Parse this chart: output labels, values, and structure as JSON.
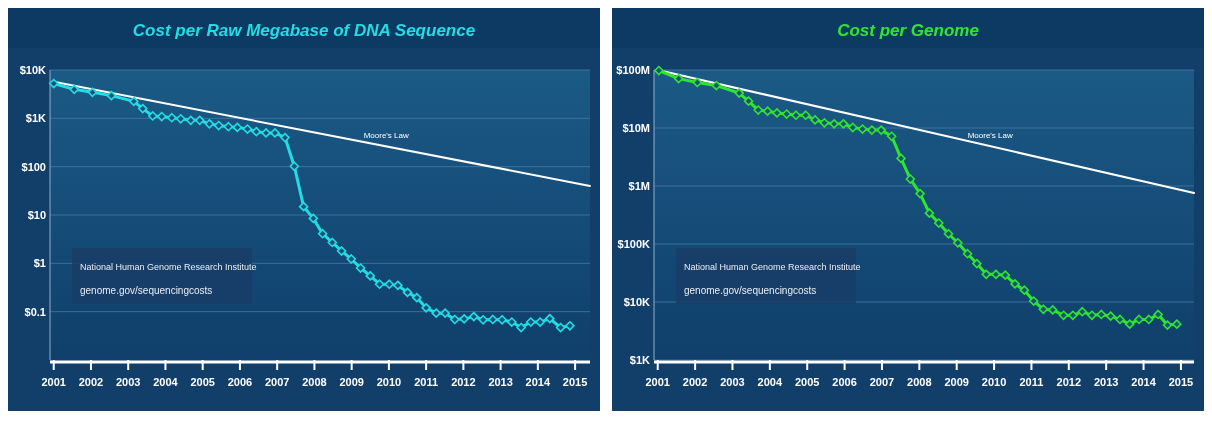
{
  "chart_data": [
    {
      "type": "line",
      "title": "Cost per Raw Megabase of DNA Sequence",
      "log": "y",
      "grid": "y",
      "marker": "diamond",
      "xlim": [
        2000.9,
        2015.4
      ],
      "xticks": [
        2001,
        2002,
        2003,
        2004,
        2005,
        2006,
        2007,
        2008,
        2009,
        2010,
        2011,
        2012,
        2013,
        2014,
        2015
      ],
      "ylim": [
        0.01,
        10000
      ],
      "yticks": [
        {
          "value": 10000,
          "label": "$10K"
        },
        {
          "value": 1000,
          "label": "$1K"
        },
        {
          "value": 100,
          "label": "$100"
        },
        {
          "value": 10,
          "label": "$10"
        },
        {
          "value": 1,
          "label": "$1"
        },
        {
          "value": 0.1,
          "label": "$0.1"
        }
      ],
      "annotations": [
        "National Human Genome Research Institute",
        "genome.gov/sequencingcosts"
      ],
      "series": [
        {
          "name": "Moore's Law",
          "type": "line",
          "marker": "none",
          "color": "#ffffff",
          "x": [
            2001,
            2015.4
          ],
          "values": [
            5700,
            40
          ]
        },
        {
          "color": "#22dde6",
          "x": [
            2001.0,
            2001.55,
            2002.04,
            2002.55,
            2003.15,
            2003.39,
            2003.66,
            2003.9,
            2004.17,
            2004.41,
            2004.68,
            2004.92,
            2005.18,
            2005.43,
            2005.69,
            2005.93,
            2006.2,
            2006.44,
            2006.7,
            2006.94,
            2007.21,
            2007.46,
            2007.71,
            2007.97,
            2008.22,
            2008.48,
            2008.73,
            2008.99,
            2009.24,
            2009.5,
            2009.75,
            2010.01,
            2010.24,
            2010.5,
            2010.75,
            2011.0,
            2011.27,
            2011.51,
            2011.77,
            2012.02,
            2012.28,
            2012.53,
            2012.79,
            2013.04,
            2013.3,
            2013.55,
            2013.81,
            2014.06,
            2014.32,
            2014.61,
            2014.86
          ],
          "values": [
            5250,
            3980,
            3450,
            2950,
            2240,
            1590,
            1120,
            1090,
            1030,
            980,
            910,
            910,
            770,
            710,
            670,
            650,
            600,
            530,
            500,
            500,
            400,
            102,
            14.9,
            8.5,
            4.1,
            2.7,
            1.8,
            1.23,
            0.8,
            0.55,
            0.37,
            0.37,
            0.35,
            0.25,
            0.195,
            0.12,
            0.093,
            0.093,
            0.069,
            0.071,
            0.079,
            0.068,
            0.069,
            0.068,
            0.061,
            0.047,
            0.061,
            0.061,
            0.072,
            0.047,
            0.051
          ]
        }
      ]
    },
    {
      "type": "line",
      "title": "Cost per Genome",
      "log": "y",
      "grid": "y",
      "marker": "diamond",
      "xlim": [
        2000.9,
        2015.35
      ],
      "xticks": [
        2001,
        2002,
        2003,
        2004,
        2005,
        2006,
        2007,
        2008,
        2009,
        2010,
        2011,
        2012,
        2013,
        2014,
        2015
      ],
      "ylim": [
        1000,
        100000000
      ],
      "yticks": [
        {
          "value": 100000000,
          "label": "$100M"
        },
        {
          "value": 10000000,
          "label": "$10M"
        },
        {
          "value": 1000000,
          "label": "$1M"
        },
        {
          "value": 100000,
          "label": "$100K"
        },
        {
          "value": 10000,
          "label": "$10K"
        },
        {
          "value": 1000,
          "label": "$1K"
        }
      ],
      "annotations": [
        "National Human Genome Research Institute",
        "genome.gov/sequencingcosts"
      ],
      "series": [
        {
          "name": "Moore's Law",
          "type": "line",
          "marker": "none",
          "color": "#ffffff",
          "x": [
            2001,
            2015.35
          ],
          "values": [
            100000000,
            760000
          ]
        },
        {
          "color": "#2ee62e",
          "x": [
            2001.03,
            2001.56,
            2002.06,
            2002.57,
            2003.18,
            2003.43,
            2003.69,
            2003.94,
            2004.19,
            2004.45,
            2004.7,
            2004.96,
            2005.21,
            2005.46,
            2005.72,
            2005.97,
            2006.22,
            2006.48,
            2006.73,
            2006.98,
            2007.26,
            2007.51,
            2007.76,
            2008.02,
            2008.27,
            2008.52,
            2008.78,
            2009.03,
            2009.29,
            2009.54,
            2009.79,
            2010.05,
            2010.3,
            2010.56,
            2010.81,
            2011.06,
            2011.32,
            2011.57,
            2011.86,
            2012.11,
            2012.36,
            2012.62,
            2012.87,
            2013.12,
            2013.37,
            2013.63,
            2013.88,
            2014.14,
            2014.39,
            2014.64,
            2014.89
          ],
          "values": [
            98000000,
            71000000,
            61000000,
            54000000,
            40000000,
            29000000,
            20400000,
            19500000,
            18200000,
            17400000,
            16600000,
            16600000,
            13800000,
            12300000,
            11800000,
            11800000,
            10200000,
            9600000,
            9200000,
            9200000,
            7200000,
            2990000,
            1320000,
            740000,
            340000,
            230000,
            150000,
            105000,
            68000,
            46000,
            30000,
            30000,
            29000,
            20500,
            16000,
            10400,
            7500,
            7300,
            5900,
            5900,
            6800,
            5900,
            6100,
            5700,
            5000,
            4150,
            5000,
            5000,
            6100,
            4000,
            4150
          ]
        }
      ]
    }
  ]
}
